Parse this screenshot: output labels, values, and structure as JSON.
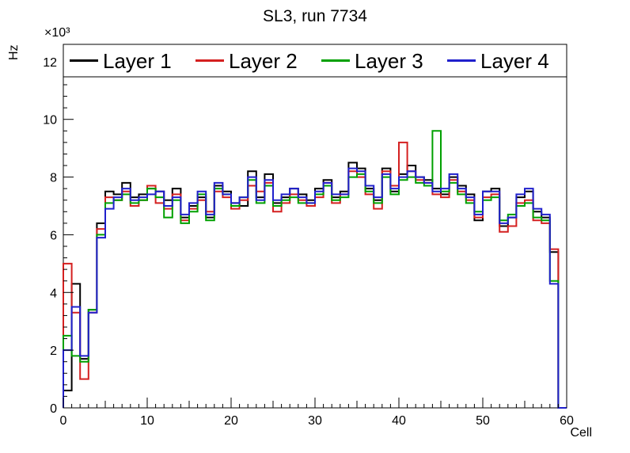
{
  "chart_data": {
    "type": "line",
    "style": "step-histogram",
    "title": "SL3, run 7734",
    "xlabel": "Cell",
    "ylabel": "Hz",
    "y_axis_multiplier": "×10³",
    "values_unit": "×10³ Hz (kHz)",
    "xlim": [
      0,
      60
    ],
    "ylim": [
      0,
      12.6
    ],
    "x_ticks": [
      0,
      10,
      20,
      30,
      40,
      50,
      60
    ],
    "y_ticks": [
      0,
      2,
      4,
      6,
      8,
      10,
      12
    ],
    "bin_width": 1,
    "legend_position": "top",
    "frame_color": "#000000",
    "series": [
      {
        "name": "Layer 1",
        "color": "#000000",
        "values": [
          0.6,
          4.3,
          1.7,
          3.4,
          6.4,
          7.5,
          7.4,
          7.8,
          7.3,
          7.4,
          7.6,
          7.5,
          7.2,
          7.6,
          6.6,
          7.0,
          7.3,
          6.6,
          7.7,
          7.5,
          7.1,
          7.0,
          8.2,
          7.3,
          8.1,
          7.1,
          7.3,
          7.6,
          7.4,
          7.2,
          7.6,
          7.9,
          7.3,
          7.5,
          8.5,
          8.3,
          7.6,
          7.2,
          8.3,
          7.5,
          8.1,
          8.4,
          8.0,
          7.9,
          7.6,
          7.4,
          8.0,
          7.7,
          7.4,
          6.5,
          7.5,
          7.6,
          6.3,
          6.6,
          7.3,
          7.5,
          6.8,
          6.6,
          5.4,
          0
        ]
      },
      {
        "name": "Layer 2",
        "color": "#d42020",
        "values": [
          5.0,
          3.3,
          1.0,
          3.3,
          6.2,
          7.3,
          7.2,
          7.5,
          7.0,
          7.2,
          7.7,
          7.1,
          6.9,
          7.4,
          6.5,
          6.9,
          7.2,
          6.8,
          7.5,
          7.3,
          6.9,
          7.2,
          7.7,
          7.5,
          7.8,
          6.8,
          7.1,
          7.4,
          7.2,
          7.0,
          7.3,
          7.8,
          7.1,
          7.4,
          8.2,
          8.0,
          7.4,
          6.9,
          8.2,
          7.7,
          9.2,
          8.2,
          7.9,
          7.8,
          7.4,
          7.3,
          7.9,
          7.5,
          7.2,
          6.6,
          7.3,
          7.4,
          6.1,
          6.3,
          7.1,
          7.2,
          6.5,
          6.4,
          5.5,
          0
        ]
      },
      {
        "name": "Layer 3",
        "color": "#00a000",
        "values": [
          2.5,
          1.8,
          1.6,
          3.4,
          6.0,
          7.1,
          7.2,
          7.4,
          7.1,
          7.2,
          7.6,
          7.3,
          6.6,
          7.2,
          6.4,
          6.8,
          7.4,
          6.5,
          7.6,
          7.4,
          7.0,
          7.3,
          7.9,
          7.1,
          7.7,
          7.0,
          7.2,
          7.3,
          7.1,
          7.1,
          7.4,
          7.7,
          7.2,
          7.3,
          8.0,
          8.1,
          7.5,
          7.1,
          8.0,
          7.4,
          7.9,
          8.0,
          7.8,
          7.7,
          9.6,
          7.5,
          7.8,
          7.4,
          7.1,
          6.8,
          7.2,
          7.3,
          6.5,
          6.7,
          7.0,
          7.1,
          6.6,
          6.5,
          4.4,
          0
        ]
      },
      {
        "name": "Layer 4",
        "color": "#2020cc",
        "values": [
          2.0,
          3.5,
          1.8,
          3.3,
          5.9,
          6.9,
          7.3,
          7.6,
          7.2,
          7.3,
          7.4,
          7.5,
          7.0,
          7.3,
          6.7,
          7.1,
          7.5,
          6.7,
          7.8,
          7.4,
          7.1,
          7.3,
          8.0,
          7.2,
          7.9,
          7.2,
          7.4,
          7.6,
          7.3,
          7.1,
          7.5,
          7.8,
          7.4,
          7.4,
          8.3,
          8.2,
          7.7,
          7.3,
          8.1,
          7.6,
          8.0,
          8.2,
          8.0,
          7.8,
          7.5,
          7.6,
          8.1,
          7.6,
          7.3,
          6.7,
          7.5,
          7.5,
          6.4,
          6.6,
          7.4,
          7.6,
          6.9,
          6.7,
          4.3,
          0
        ]
      }
    ]
  }
}
